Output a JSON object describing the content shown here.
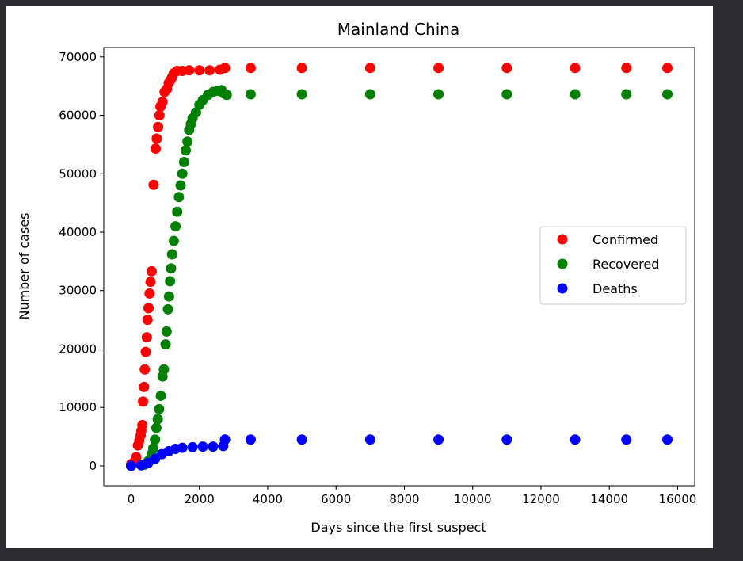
{
  "chart_data": {
    "type": "scatter",
    "title": "Mainland China",
    "xlabel": "Days since the first suspect",
    "ylabel": "Number of cases",
    "xlim": [
      -800,
      16500
    ],
    "ylim": [
      -3400,
      71600
    ],
    "xticks": [
      0,
      2000,
      4000,
      6000,
      8000,
      10000,
      12000,
      14000,
      16000
    ],
    "yticks": [
      0,
      10000,
      20000,
      30000,
      40000,
      50000,
      60000,
      70000
    ],
    "xtick_labels": [
      "0",
      "2000",
      "4000",
      "6000",
      "8000",
      "10000",
      "12000",
      "14000",
      "16000"
    ],
    "ytick_labels": [
      "0",
      "10000",
      "20000",
      "30000",
      "40000",
      "50000",
      "60000",
      "70000"
    ],
    "grid": false,
    "legend": "center-right",
    "series": [
      {
        "name": "Confirmed",
        "color": "#ff0000",
        "points": [
          [
            0,
            300
          ],
          [
            80,
            600
          ],
          [
            150,
            1500
          ],
          [
            200,
            3500
          ],
          [
            240,
            4300
          ],
          [
            280,
            5200
          ],
          [
            300,
            6000
          ],
          [
            330,
            7000
          ],
          [
            350,
            11000
          ],
          [
            380,
            13500
          ],
          [
            400,
            16500
          ],
          [
            430,
            19500
          ],
          [
            460,
            22000
          ],
          [
            480,
            25000
          ],
          [
            510,
            27000
          ],
          [
            540,
            29500
          ],
          [
            570,
            31500
          ],
          [
            600,
            33300
          ],
          [
            660,
            48100
          ],
          [
            720,
            54300
          ],
          [
            750,
            56000
          ],
          [
            790,
            58000
          ],
          [
            830,
            60000
          ],
          [
            860,
            61500
          ],
          [
            920,
            62300
          ],
          [
            980,
            64000
          ],
          [
            1050,
            64500
          ],
          [
            1100,
            65500
          ],
          [
            1150,
            66000
          ],
          [
            1200,
            66500
          ],
          [
            1250,
            67200
          ],
          [
            1350,
            67600
          ],
          [
            1500,
            67600
          ],
          [
            1700,
            67700
          ],
          [
            2000,
            67700
          ],
          [
            2300,
            67700
          ],
          [
            2600,
            67800
          ],
          [
            2750,
            68100
          ],
          [
            3500,
            68100
          ],
          [
            5000,
            68100
          ],
          [
            7000,
            68100
          ],
          [
            9000,
            68100
          ],
          [
            11000,
            68100
          ],
          [
            13000,
            68100
          ],
          [
            14500,
            68100
          ],
          [
            15700,
            68100
          ]
        ]
      },
      {
        "name": "Recovered",
        "color": "#008000",
        "points": [
          [
            0,
            0
          ],
          [
            400,
            200
          ],
          [
            500,
            800
          ],
          [
            600,
            2000
          ],
          [
            650,
            3000
          ],
          [
            700,
            4500
          ],
          [
            740,
            6500
          ],
          [
            780,
            8000
          ],
          [
            820,
            9700
          ],
          [
            870,
            12000
          ],
          [
            920,
            15300
          ],
          [
            960,
            16500
          ],
          [
            1010,
            20800
          ],
          [
            1040,
            23000
          ],
          [
            1080,
            26800
          ],
          [
            1110,
            29000
          ],
          [
            1140,
            31600
          ],
          [
            1170,
            33800
          ],
          [
            1200,
            36200
          ],
          [
            1250,
            38500
          ],
          [
            1300,
            41000
          ],
          [
            1350,
            43500
          ],
          [
            1400,
            46000
          ],
          [
            1450,
            48000
          ],
          [
            1500,
            50000
          ],
          [
            1550,
            52000
          ],
          [
            1600,
            54000
          ],
          [
            1650,
            55500
          ],
          [
            1700,
            57500
          ],
          [
            1750,
            58500
          ],
          [
            1800,
            59500
          ],
          [
            1900,
            60500
          ],
          [
            2000,
            61800
          ],
          [
            2100,
            62600
          ],
          [
            2250,
            63500
          ],
          [
            2400,
            64000
          ],
          [
            2550,
            64200
          ],
          [
            2650,
            64300
          ],
          [
            2700,
            63800
          ],
          [
            2800,
            63500
          ],
          [
            3500,
            63600
          ],
          [
            5000,
            63600
          ],
          [
            7000,
            63600
          ],
          [
            9000,
            63600
          ],
          [
            11000,
            63600
          ],
          [
            13000,
            63600
          ],
          [
            14500,
            63600
          ],
          [
            15700,
            63600
          ]
        ]
      },
      {
        "name": "Deaths",
        "color": "#0000ff",
        "points": [
          [
            0,
            0
          ],
          [
            300,
            100
          ],
          [
            500,
            500
          ],
          [
            700,
            1200
          ],
          [
            900,
            2000
          ],
          [
            1100,
            2500
          ],
          [
            1300,
            2900
          ],
          [
            1500,
            3100
          ],
          [
            1800,
            3200
          ],
          [
            2100,
            3300
          ],
          [
            2400,
            3300
          ],
          [
            2700,
            3400
          ],
          [
            2750,
            4500
          ],
          [
            3500,
            4500
          ],
          [
            5000,
            4500
          ],
          [
            7000,
            4500
          ],
          [
            9000,
            4500
          ],
          [
            11000,
            4500
          ],
          [
            13000,
            4500
          ],
          [
            14500,
            4500
          ],
          [
            15700,
            4500
          ]
        ]
      }
    ]
  }
}
